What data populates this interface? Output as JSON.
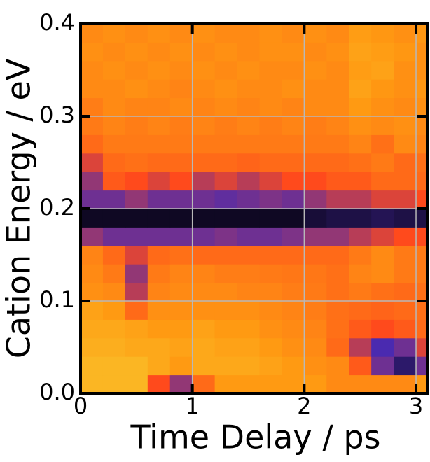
{
  "chart_data": {
    "type": "heatmap",
    "xlabel": "Time Delay / ps",
    "ylabel": "Cation Energy / eV",
    "xlim": [
      0,
      3.1
    ],
    "ylim": [
      0,
      0.4
    ],
    "xticks": [
      0,
      1,
      2,
      3
    ],
    "yticks": [
      {
        "value": 0,
        "label": "0.0"
      },
      0.1,
      0.2,
      0.3,
      0.4
    ],
    "grid": true,
    "grid_color": "#b8b8b8",
    "colormap": [
      "#000000",
      "#4a2ab0",
      "#ff4a1c",
      "#ff9a12",
      "#f6e03c"
    ],
    "xbins": [
      0,
      0.2,
      0.4,
      0.6,
      0.8,
      1.0,
      1.2,
      1.4,
      1.6,
      1.8,
      2.0,
      2.2,
      2.4,
      2.6,
      2.8,
      3.0,
      3.1
    ],
    "ybins": [
      0,
      0.02,
      0.04,
      0.06,
      0.08,
      0.1,
      0.12,
      0.14,
      0.16,
      0.18,
      0.2,
      0.22,
      0.24,
      0.26,
      0.28,
      0.3,
      0.32,
      0.34,
      0.36,
      0.38,
      0.4
    ],
    "z": [
      [
        0.85,
        0.85,
        0.85,
        0.5,
        0.35,
        0.6,
        0.75,
        0.75,
        0.75,
        0.75,
        0.75,
        0.7,
        0.7,
        0.7,
        0.7,
        0.75
      ],
      [
        0.85,
        0.85,
        0.85,
        0.8,
        0.75,
        0.8,
        0.8,
        0.8,
        0.78,
        0.75,
        0.72,
        0.7,
        0.55,
        0.3,
        0.15,
        0.3
      ],
      [
        0.82,
        0.82,
        0.8,
        0.8,
        0.78,
        0.8,
        0.78,
        0.78,
        0.75,
        0.72,
        0.7,
        0.6,
        0.4,
        0.25,
        0.3,
        0.45
      ],
      [
        0.8,
        0.8,
        0.78,
        0.75,
        0.75,
        0.78,
        0.75,
        0.75,
        0.72,
        0.7,
        0.68,
        0.62,
        0.55,
        0.5,
        0.55,
        0.6
      ],
      [
        0.78,
        0.75,
        0.6,
        0.72,
        0.72,
        0.72,
        0.72,
        0.72,
        0.7,
        0.68,
        0.66,
        0.62,
        0.6,
        0.58,
        0.6,
        0.62
      ],
      [
        0.72,
        0.7,
        0.4,
        0.68,
        0.7,
        0.7,
        0.7,
        0.68,
        0.68,
        0.66,
        0.65,
        0.62,
        0.65,
        0.62,
        0.6,
        0.62
      ],
      [
        0.7,
        0.65,
        0.35,
        0.65,
        0.68,
        0.68,
        0.66,
        0.66,
        0.65,
        0.64,
        0.64,
        0.62,
        0.68,
        0.7,
        0.65,
        0.65
      ],
      [
        0.68,
        0.6,
        0.45,
        0.6,
        0.62,
        0.6,
        0.6,
        0.6,
        0.6,
        0.6,
        0.6,
        0.6,
        0.65,
        0.7,
        0.65,
        0.65
      ],
      [
        0.35,
        0.3,
        0.3,
        0.3,
        0.3,
        0.3,
        0.32,
        0.3,
        0.3,
        0.32,
        0.35,
        0.35,
        0.4,
        0.45,
        0.5,
        0.5
      ],
      [
        0.05,
        0.05,
        0.05,
        0.05,
        0.05,
        0.05,
        0.05,
        0.05,
        0.05,
        0.05,
        0.08,
        0.1,
        0.1,
        0.12,
        0.1,
        0.1
      ],
      [
        0.3,
        0.3,
        0.35,
        0.3,
        0.3,
        0.3,
        0.28,
        0.3,
        0.32,
        0.3,
        0.35,
        0.4,
        0.4,
        0.45,
        0.45,
        0.5
      ],
      [
        0.35,
        0.55,
        0.5,
        0.45,
        0.5,
        0.4,
        0.45,
        0.4,
        0.45,
        0.5,
        0.5,
        0.55,
        0.55,
        0.6,
        0.6,
        0.6
      ],
      [
        0.45,
        0.6,
        0.62,
        0.6,
        0.6,
        0.6,
        0.6,
        0.58,
        0.6,
        0.6,
        0.6,
        0.6,
        0.62,
        0.65,
        0.6,
        0.62
      ],
      [
        0.6,
        0.65,
        0.65,
        0.65,
        0.65,
        0.65,
        0.65,
        0.65,
        0.65,
        0.65,
        0.65,
        0.65,
        0.68,
        0.62,
        0.7,
        0.68
      ],
      [
        0.65,
        0.68,
        0.66,
        0.68,
        0.66,
        0.68,
        0.66,
        0.68,
        0.66,
        0.68,
        0.66,
        0.68,
        0.72,
        0.7,
        0.72,
        0.7
      ],
      [
        0.66,
        0.7,
        0.68,
        0.68,
        0.7,
        0.68,
        0.7,
        0.68,
        0.7,
        0.68,
        0.7,
        0.7,
        0.75,
        0.72,
        0.7,
        0.72
      ],
      [
        0.7,
        0.7,
        0.72,
        0.7,
        0.68,
        0.7,
        0.72,
        0.7,
        0.7,
        0.72,
        0.7,
        0.7,
        0.78,
        0.74,
        0.72,
        0.74
      ],
      [
        0.7,
        0.72,
        0.7,
        0.72,
        0.7,
        0.72,
        0.7,
        0.72,
        0.7,
        0.7,
        0.72,
        0.7,
        0.76,
        0.78,
        0.72,
        0.72
      ],
      [
        0.72,
        0.7,
        0.72,
        0.7,
        0.72,
        0.7,
        0.72,
        0.7,
        0.72,
        0.72,
        0.7,
        0.72,
        0.78,
        0.76,
        0.74,
        0.72
      ],
      [
        0.7,
        0.72,
        0.7,
        0.72,
        0.7,
        0.72,
        0.7,
        0.7,
        0.72,
        0.7,
        0.72,
        0.7,
        0.76,
        0.74,
        0.72,
        0.74
      ]
    ]
  }
}
